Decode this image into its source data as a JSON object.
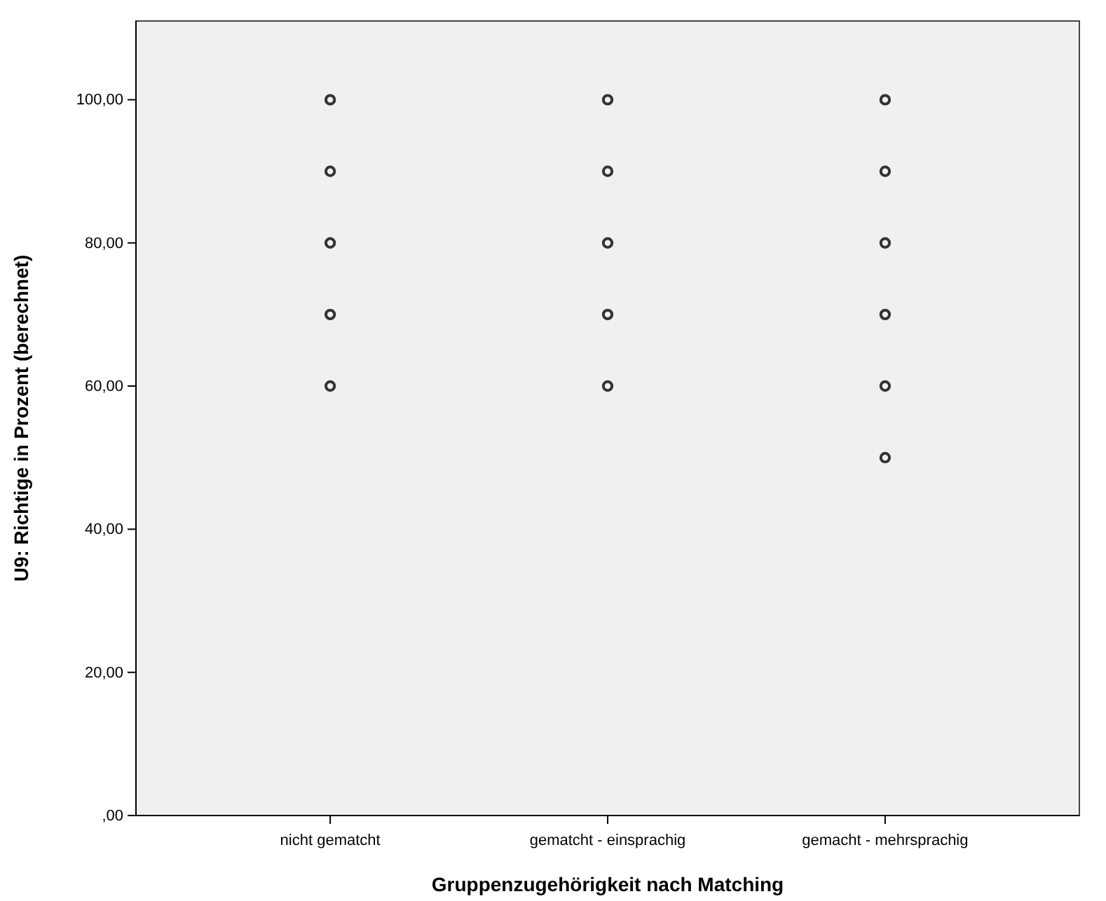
{
  "chart_data": {
    "type": "scatter",
    "xlabel": "Gruppenzugehörigkeit nach Matching",
    "ylabel": "U9: Richtige in Prozent (berechnet)",
    "categories": [
      "nicht gematcht",
      "gematcht - einsprachig",
      "gemacht - mehrsprachig"
    ],
    "ylim": [
      0,
      111
    ],
    "yticks": [
      {
        "value": 0,
        "label": ",00"
      },
      {
        "value": 20,
        "label": "20,00"
      },
      {
        "value": 40,
        "label": "40,00"
      },
      {
        "value": 60,
        "label": "60,00"
      },
      {
        "value": 80,
        "label": "80,00"
      },
      {
        "value": 100,
        "label": "100,00"
      }
    ],
    "marker": "circle",
    "series": [
      {
        "color": "#333333",
        "x": [
          "nicht gematcht",
          "nicht gematcht",
          "nicht gematcht",
          "nicht gematcht",
          "nicht gematcht",
          "gematcht - einsprachig",
          "gematcht - einsprachig",
          "gematcht - einsprachig",
          "gematcht - einsprachig",
          "gematcht - einsprachig",
          "gemacht - mehrsprachig",
          "gemacht - mehrsprachig",
          "gemacht - mehrsprachig",
          "gemacht - mehrsprachig",
          "gemacht - mehrsprachig",
          "gemacht - mehrsprachig"
        ],
        "values": [
          60,
          70,
          80,
          90,
          100,
          60,
          70,
          80,
          90,
          100,
          50,
          60,
          70,
          80,
          90,
          100
        ]
      }
    ]
  }
}
